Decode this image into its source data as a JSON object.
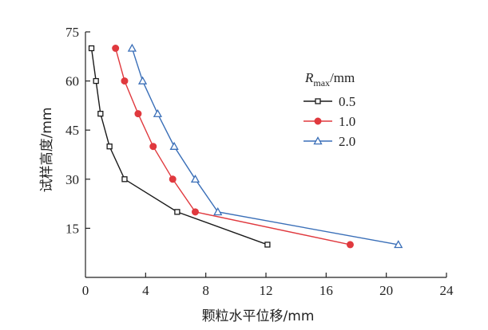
{
  "chart_data": {
    "type": "line",
    "xlabel": "颗粒水平位移/mm",
    "ylabel": "试样高度/mm",
    "xlim": [
      0,
      24
    ],
    "ylim": [
      0,
      75
    ],
    "x_ticks": [
      "0",
      "4",
      "8",
      "12",
      "16",
      "20",
      "24"
    ],
    "y_ticks": [
      "15",
      "30",
      "45",
      "60",
      "75"
    ],
    "legend": {
      "title_main": "R",
      "title_sub": "max",
      "title_unit": "/mm",
      "placement": "top-right"
    },
    "series": [
      {
        "name": "0.5",
        "color": "#1a1a1a",
        "marker": "square-open",
        "points": [
          [
            0.4,
            70
          ],
          [
            0.7,
            60
          ],
          [
            1.0,
            50
          ],
          [
            1.6,
            40
          ],
          [
            2.6,
            30
          ],
          [
            6.1,
            20
          ],
          [
            12.1,
            10
          ]
        ]
      },
      {
        "name": "1.0",
        "color": "#e0393e",
        "marker": "circle-filled",
        "points": [
          [
            2.0,
            70
          ],
          [
            2.6,
            60
          ],
          [
            3.5,
            50
          ],
          [
            4.5,
            40
          ],
          [
            5.8,
            30
          ],
          [
            7.3,
            20
          ],
          [
            17.6,
            10
          ]
        ]
      },
      {
        "name": "2.0",
        "color": "#3a6fb8",
        "marker": "triangle-open",
        "points": [
          [
            3.1,
            70
          ],
          [
            3.8,
            60
          ],
          [
            4.8,
            50
          ],
          [
            5.9,
            40
          ],
          [
            7.3,
            30
          ],
          [
            8.8,
            20
          ],
          [
            20.8,
            10
          ]
        ]
      }
    ]
  }
}
